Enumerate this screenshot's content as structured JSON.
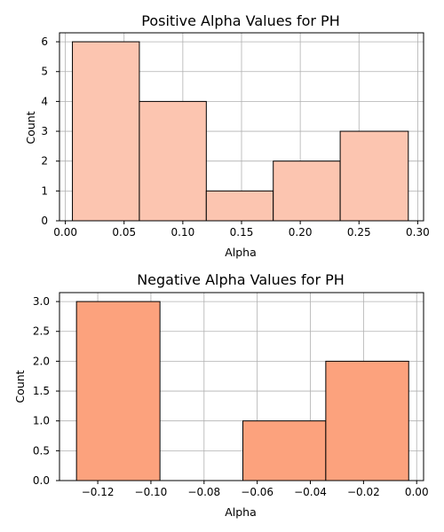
{
  "chart_data": [
    {
      "type": "bar",
      "title": "Positive Alpha Values for PH",
      "xlabel": "Alpha",
      "ylabel": "Count",
      "bin_edges": [
        0.006,
        0.063,
        0.12,
        0.177,
        0.234,
        0.292
      ],
      "values": [
        6,
        4,
        1,
        2,
        3
      ],
      "xlim": [
        -0.005,
        0.305
      ],
      "ylim": [
        0,
        6.3
      ],
      "xticks": [
        0.0,
        0.05,
        0.1,
        0.15,
        0.2,
        0.25,
        0.3
      ],
      "xtick_labels": [
        "0.00",
        "0.05",
        "0.10",
        "0.15",
        "0.20",
        "0.25",
        "0.30"
      ],
      "yticks": [
        0,
        1,
        2,
        3,
        4,
        5,
        6
      ],
      "ytick_labels": [
        "0",
        "1",
        "2",
        "3",
        "4",
        "5",
        "6"
      ],
      "grid": true,
      "bar_color": "#fcc5b0",
      "edge_color": "#000000"
    },
    {
      "type": "bar",
      "title": "Negative Alpha Values for PH",
      "xlabel": "Alpha",
      "ylabel": "Count",
      "bin_edges": [
        -0.128,
        -0.0966,
        -0.0654,
        -0.0342,
        -0.003
      ],
      "values": [
        3,
        0,
        1,
        2
      ],
      "xlim": [
        -0.1344,
        0.0026
      ],
      "ylim": [
        0,
        3.15
      ],
      "xticks": [
        -0.12,
        -0.1,
        -0.08,
        -0.06,
        -0.04,
        -0.02,
        0.0
      ],
      "xtick_labels": [
        "−0.12",
        "−0.10",
        "−0.08",
        "−0.06",
        "−0.04",
        "−0.02",
        "0.00"
      ],
      "yticks": [
        0,
        0.5,
        1,
        1.5,
        2,
        2.5,
        3
      ],
      "ytick_labels": [
        "0.0",
        "0.5",
        "1.0",
        "1.5",
        "2.0",
        "2.5",
        "3.0"
      ],
      "grid": true,
      "bar_color": "#fca27d",
      "edge_color": "#000000"
    }
  ]
}
